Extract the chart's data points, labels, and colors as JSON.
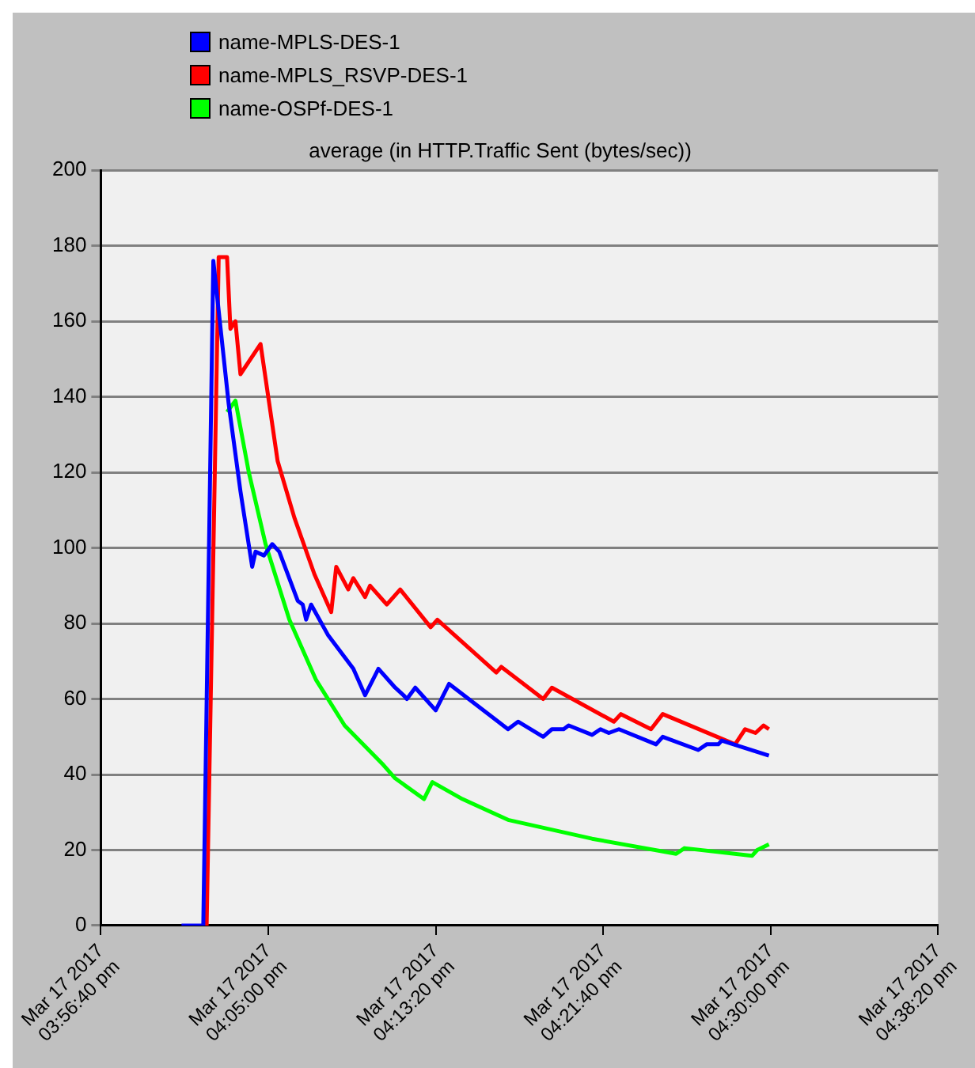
{
  "chart_data": {
    "type": "line",
    "title": "average (in HTTP.Traffic Sent (bytes/sec))",
    "series": [
      {
        "name": "name-MPLS-DES-1",
        "color": "#0000ff",
        "x": [
          "2017-03-17T16:00:41",
          "2017-03-17T16:01:46",
          "2017-03-17T16:02:16",
          "2017-03-17T16:03:02",
          "2017-03-17T16:03:37",
          "2017-03-17T16:04:12",
          "2017-03-17T16:04:22",
          "2017-03-17T16:04:47",
          "2017-03-17T16:05:12",
          "2017-03-17T16:05:33",
          "2017-03-17T16:06:28",
          "2017-03-17T16:06:43",
          "2017-03-17T16:06:53",
          "2017-03-17T16:07:08",
          "2017-03-17T16:07:58",
          "2017-03-17T16:09:14",
          "2017-03-17T16:09:49",
          "2017-03-17T16:10:29",
          "2017-03-17T16:11:19",
          "2017-03-17T16:11:44",
          "2017-03-17T16:11:54",
          "2017-03-17T16:12:19",
          "2017-03-17T16:13:20",
          "2017-03-17T16:14:00",
          "2017-03-17T16:16:56",
          "2017-03-17T16:17:26",
          "2017-03-17T16:18:41",
          "2017-03-17T16:19:07",
          "2017-03-17T16:19:42",
          "2017-03-17T16:19:57",
          "2017-03-17T16:21:07",
          "2017-03-17T16:21:32",
          "2017-03-17T16:21:57",
          "2017-03-17T16:22:27",
          "2017-03-17T16:24:18",
          "2017-03-17T16:24:38",
          "2017-03-17T16:26:24",
          "2017-03-17T16:26:49",
          "2017-03-17T16:27:24",
          "2017-03-17T16:27:34",
          "2017-03-17T16:29:55"
        ],
        "values": [
          0,
          0,
          176,
          138,
          115,
          95,
          99,
          98,
          101,
          99,
          86,
          85,
          81,
          85,
          77,
          68,
          61,
          68,
          63,
          61,
          60,
          63,
          57,
          64,
          52,
          54,
          50,
          52,
          52,
          53,
          50.5,
          52,
          51,
          52,
          48,
          50,
          46.5,
          48,
          48,
          49,
          45
        ]
      },
      {
        "name": "name-MPLS_RSVP-DES-1",
        "color": "#ff0000",
        "x": [
          "2017-03-17T16:01:56",
          "2017-03-17T16:02:32",
          "2017-03-17T16:02:57",
          "2017-03-17T16:03:07",
          "2017-03-17T16:03:22",
          "2017-03-17T16:03:37",
          "2017-03-17T16:04:37",
          "2017-03-17T16:05:28",
          "2017-03-17T16:06:18",
          "2017-03-17T16:07:18",
          "2017-03-17T16:08:08",
          "2017-03-17T16:08:23",
          "2017-03-17T16:08:59",
          "2017-03-17T16:09:14",
          "2017-03-17T16:09:49",
          "2017-03-17T16:10:04",
          "2017-03-17T16:10:54",
          "2017-03-17T16:11:34",
          "2017-03-17T16:13:05",
          "2017-03-17T16:13:25",
          "2017-03-17T16:16:21",
          "2017-03-17T16:16:36",
          "2017-03-17T16:18:41",
          "2017-03-17T16:19:07",
          "2017-03-17T16:22:12",
          "2017-03-17T16:22:33",
          "2017-03-17T16:24:03",
          "2017-03-17T16:24:38",
          "2017-03-17T16:28:14",
          "2017-03-17T16:28:44",
          "2017-03-17T16:29:15",
          "2017-03-17T16:29:39",
          "2017-03-17T16:29:55"
        ],
        "values": [
          0,
          177,
          177,
          158,
          160,
          146,
          154,
          123,
          108,
          93,
          83,
          95,
          89,
          92,
          87,
          90,
          85,
          89,
          79,
          81,
          67,
          68.5,
          60,
          63,
          54,
          56,
          52,
          56,
          48,
          52,
          51,
          53,
          52
        ]
      },
      {
        "name": "name-OSPf-DES-1",
        "color": "#00ff00",
        "x": [
          "2017-03-17T16:02:57",
          "2017-03-17T16:03:22",
          "2017-03-17T16:04:02",
          "2017-03-17T16:04:52",
          "2017-03-17T16:06:03",
          "2017-03-17T16:07:23",
          "2017-03-17T16:08:48",
          "2017-03-17T16:10:44",
          "2017-03-17T16:11:19",
          "2017-03-17T16:12:45",
          "2017-03-17T16:13:10",
          "2017-03-17T16:14:40",
          "2017-03-17T16:16:56",
          "2017-03-17T16:21:07",
          "2017-03-17T16:25:18",
          "2017-03-17T16:25:43",
          "2017-03-17T16:29:05",
          "2017-03-17T16:29:20",
          "2017-03-17T16:29:55"
        ],
        "values": [
          136,
          139,
          120,
          101,
          81,
          65,
          53,
          42.5,
          39,
          33.5,
          38,
          33.5,
          28,
          23,
          19,
          20.5,
          18.5,
          20,
          21.5
        ]
      }
    ],
    "xlim": [
      "2017-03-17T15:56:40",
      "2017-03-17T16:38:20"
    ],
    "xticks": [
      {
        "value": "2017-03-17T15:56:40",
        "label": "Mar 17 2017\n03:56:40 pm"
      },
      {
        "value": "2017-03-17T16:05:00",
        "label": "Mar 17 2017\n04:05:00 pm"
      },
      {
        "value": "2017-03-17T16:13:20",
        "label": "Mar 17 2017\n04:13:20 pm"
      },
      {
        "value": "2017-03-17T16:21:40",
        "label": "Mar 17 2017\n04:21:40 pm"
      },
      {
        "value": "2017-03-17T16:30:00",
        "label": "Mar 17 2017\n04:30:00 pm"
      },
      {
        "value": "2017-03-17T16:38:20",
        "label": "Mar 17 2017\n04:38:20 pm"
      }
    ],
    "ylim": [
      0,
      200
    ],
    "yticks": [
      0,
      20,
      40,
      60,
      80,
      100,
      120,
      140,
      160,
      180,
      200
    ],
    "grid": "y",
    "legend": "top left",
    "marker": "none",
    "line_style": "solid"
  }
}
